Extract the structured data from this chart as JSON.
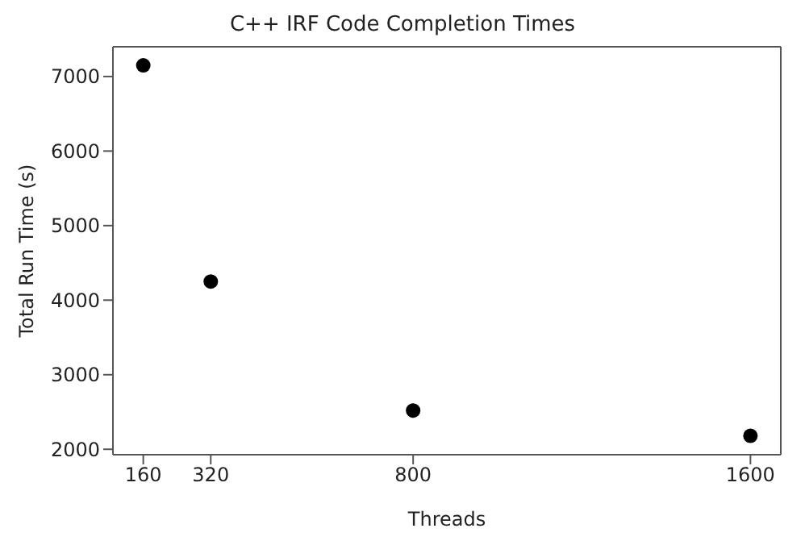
{
  "chart_data": {
    "type": "scatter",
    "title": "C++ IRF Code Completion Times",
    "xlabel": "Threads",
    "ylabel": "Total Run Time (s)",
    "x": [
      160,
      320,
      800,
      1600
    ],
    "series": [
      {
        "color": "#000000",
        "values": [
          7150,
          4250,
          2520,
          2180
        ]
      }
    ],
    "xlim": [
      88,
      1672
    ],
    "xticks": [
      160,
      320,
      800,
      1600
    ],
    "ylim": [
      1927,
      7399
    ],
    "yticks": [
      2000,
      3000,
      4000,
      5000,
      6000,
      7000
    ],
    "marker": "circle",
    "grid": false,
    "legend": false
  }
}
